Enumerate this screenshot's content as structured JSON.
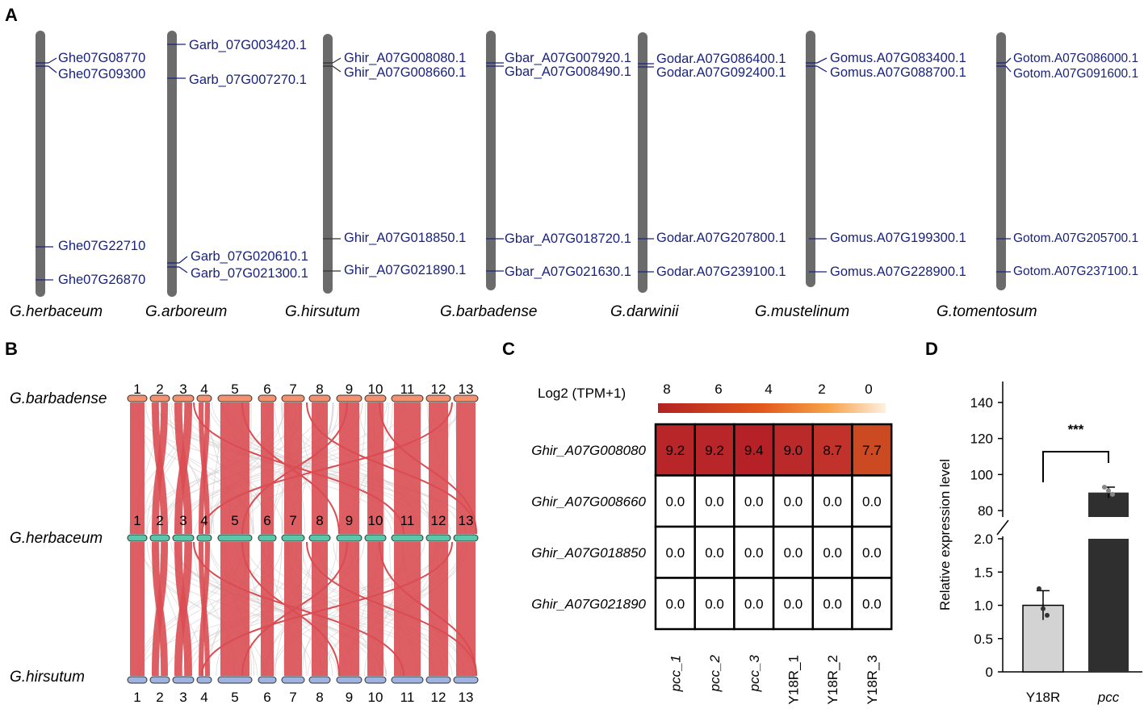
{
  "panels": {
    "a": "A",
    "b": "B",
    "c": "C",
    "d": "D"
  },
  "panel_a": {
    "chromosomes": [
      {
        "species": "G.herbaceum",
        "genes": [
          "Ghe07G08770",
          "Ghe07G09300",
          "Ghe07G22710",
          "Ghe07G26870"
        ]
      },
      {
        "species": "G.arboreum",
        "genes": [
          "Garb_07G003420.1",
          "Garb_07G007270.1",
          "Garb_07G020610.1",
          "Garb_07G021300.1"
        ]
      },
      {
        "species": "G.hirsutum",
        "genes": [
          "Ghir_A07G008080.1",
          "Ghir_A07G008660.1",
          "Ghir_A07G018850.1",
          "Ghir_A07G021890.1"
        ]
      },
      {
        "species": "G.barbadense",
        "genes": [
          "Gbar_A07G007920.1",
          "Gbar_A07G008490.1",
          "Gbar_A07G018720.1",
          "Gbar_A07G021630.1"
        ]
      },
      {
        "species": "G.darwinii",
        "genes": [
          "Godar.A07G086400.1",
          "Godar.A07G092400.1",
          "Godar.A07G207800.1",
          "Godar.A07G239100.1"
        ]
      },
      {
        "species": "G.mustelinum",
        "genes": [
          "Gomus.A07G083400.1",
          "Gomus.A07G088700.1",
          "Gomus.A07G199300.1",
          "Gomus.A07G228900.1"
        ]
      },
      {
        "species": "G.tomentosum",
        "genes": [
          "Gotom.A07G086000.1",
          "Gotom.A07G091600.1",
          "Gotom.A07G205700.1",
          "Gotom.A07G237100.1"
        ]
      }
    ]
  },
  "panel_b": {
    "genomes": [
      "G.barbadense",
      "G.herbaceum",
      "G.hirsutum"
    ],
    "chromosomes": [
      "1",
      "2",
      "3",
      "4",
      "5",
      "6",
      "7",
      "8",
      "9",
      "10",
      "11",
      "12",
      "13"
    ],
    "colors": {
      "top": "#f4916f",
      "mid": "#5cc6a8",
      "bottom": "#9eb3e0",
      "link": "#d94c52",
      "bg_link": "#cfcfcf"
    }
  },
  "chart_data": [
    {
      "type": "heatmap",
      "title": "Log2 (TPM+1)",
      "color_scale": {
        "ticks": [
          "8",
          "6",
          "4",
          "2",
          "0"
        ],
        "range": [
          0,
          8
        ],
        "low_color": "#fdf0e0",
        "high_color": "#b22222"
      },
      "rows": [
        "Ghir_A07G008080",
        "Ghir_A07G008660",
        "Ghir_A07G018850",
        "Ghir_A07G021890"
      ],
      "columns": [
        "pcc_1",
        "pcc_2",
        "pcc_3",
        "Y18R_1",
        "Y18R_2",
        "Y18R_3"
      ],
      "values": [
        [
          "9.2",
          "9.2",
          "9.4",
          "9.0",
          "8.7",
          "7.7"
        ],
        [
          "0.0",
          "0.0",
          "0.0",
          "0.0",
          "0.0",
          "0.0"
        ],
        [
          "0.0",
          "0.0",
          "0.0",
          "0.0",
          "0.0",
          "0.0"
        ],
        [
          "0.0",
          "0.0",
          "0.0",
          "0.0",
          "0.0",
          "0.0"
        ]
      ],
      "cell_colors": [
        [
          "#b8262a",
          "#b8262a",
          "#b52126",
          "#bb2a2b",
          "#c1322b",
          "#cc4a22"
        ],
        [
          "#ffffff",
          "#ffffff",
          "#ffffff",
          "#ffffff",
          "#ffffff",
          "#ffffff"
        ],
        [
          "#ffffff",
          "#ffffff",
          "#ffffff",
          "#ffffff",
          "#ffffff",
          "#ffffff"
        ],
        [
          "#ffffff",
          "#ffffff",
          "#ffffff",
          "#ffffff",
          "#ffffff",
          "#ffffff"
        ]
      ]
    },
    {
      "type": "bar",
      "categories": [
        "Y18R",
        "pcc"
      ],
      "values": [
        1.0,
        90.0
      ],
      "errors": [
        0.22,
        3.0
      ],
      "points": [
        [
          1.25,
          0.95,
          0.85
        ],
        [
          93.0,
          91.0,
          89.0
        ]
      ],
      "ylabel": "Relative  expression level",
      "yticks_lower": [
        "0",
        "0.5",
        "1.0",
        "1.5",
        "2.0"
      ],
      "yticks_upper": [
        "80",
        "100",
        "120",
        "140"
      ],
      "axis_break": [
        2.0,
        80
      ],
      "significance": "***",
      "bar_colors": [
        "#d3d3d3",
        "#2f2f2f"
      ]
    }
  ]
}
